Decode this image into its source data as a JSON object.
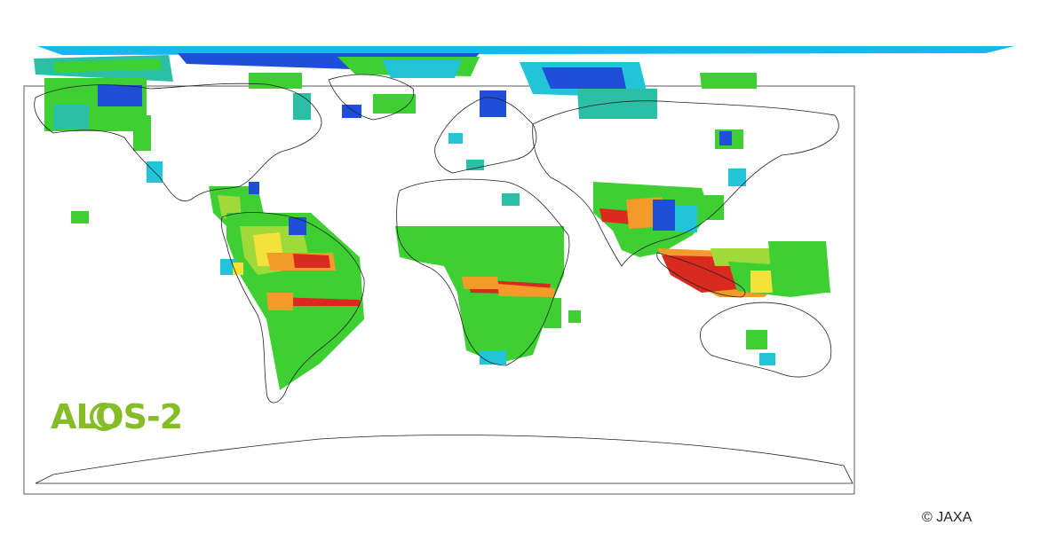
{
  "logo": {
    "text": "ALOS-2",
    "color": "#86bd26"
  },
  "copyright": "© JAXA",
  "colors": {
    "swath_top": "#17b8ee",
    "blue": "#1f4fd8",
    "cyan": "#22c4d8",
    "teal": "#2bbfa6",
    "green": "#3ecf33",
    "yellowgreen": "#9fd93a",
    "yellow": "#f2e23a",
    "orange": "#f29a2a",
    "red": "#d82a1e",
    "coast": "#222222"
  }
}
